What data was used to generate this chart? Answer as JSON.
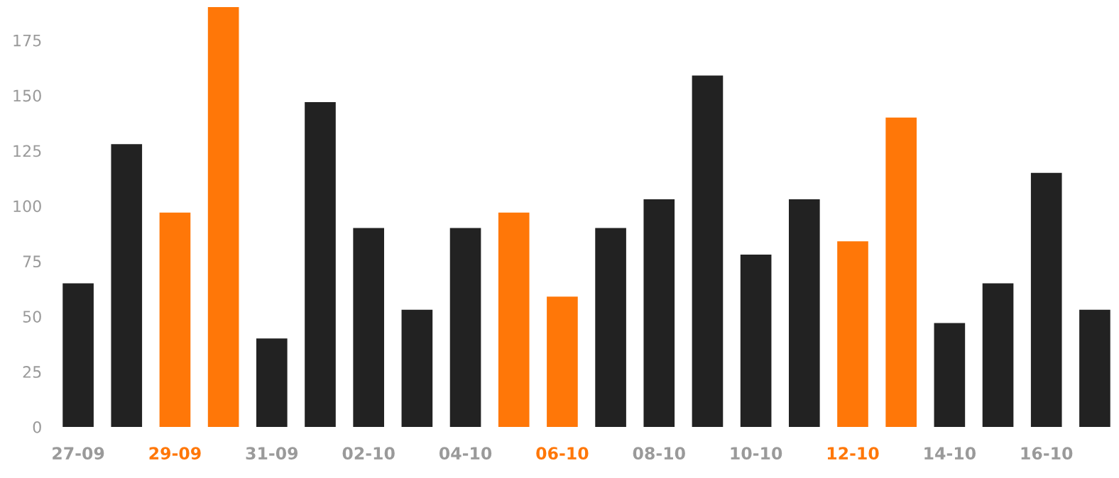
{
  "chart_data": {
    "type": "bar",
    "categories": [
      "27-09",
      null,
      "29-09",
      null,
      "31-09",
      null,
      "02-10",
      null,
      "04-10",
      null,
      "06-10",
      null,
      "08-10",
      null,
      "10-10",
      null,
      "12-10",
      null,
      "14-10",
      null,
      "16-10",
      null
    ],
    "values": [
      65,
      128,
      97,
      190,
      40,
      147,
      90,
      53,
      90,
      97,
      59,
      90,
      103,
      159,
      78,
      103,
      84,
      140,
      47,
      65,
      115,
      53
    ],
    "colors": [
      "#222222",
      "#222222",
      "#ff7708",
      "#ff7708",
      "#222222",
      "#222222",
      "#222222",
      "#222222",
      "#222222",
      "#ff7708",
      "#ff7708",
      "#222222",
      "#222222",
      "#222222",
      "#222222",
      "#222222",
      "#ff7708",
      "#ff7708",
      "#222222",
      "#222222",
      "#222222",
      "#222222"
    ],
    "ylim": [
      0,
      190
    ],
    "yticks": [
      0,
      25,
      50,
      75,
      100,
      125,
      150,
      175
    ],
    "grid": false
  }
}
